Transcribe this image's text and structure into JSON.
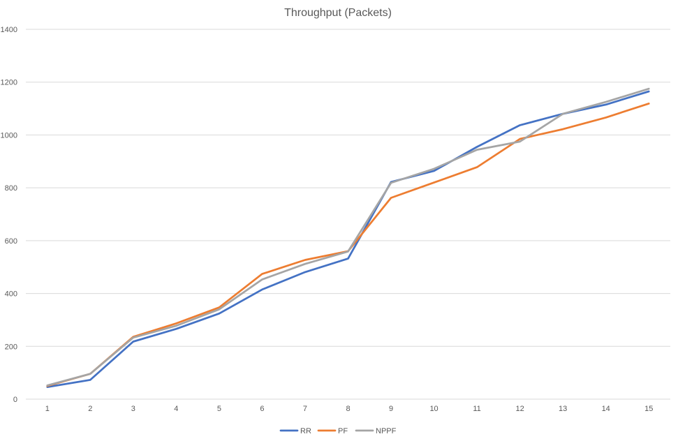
{
  "chart_data": {
    "type": "line",
    "title": "Throughput (Packets)",
    "xlabel": "",
    "ylabel": "",
    "categories": [
      "1",
      "2",
      "3",
      "4",
      "5",
      "6",
      "7",
      "8",
      "9",
      "10",
      "11",
      "12",
      "13",
      "14",
      "15"
    ],
    "ylim": [
      0,
      1400
    ],
    "yticks": [
      0,
      200,
      400,
      600,
      800,
      1000,
      1200,
      1400
    ],
    "grid": true,
    "legend": "bottom",
    "series": [
      {
        "name": "RR",
        "color": "#4472c4",
        "values": [
          46,
          73,
          218,
          266,
          324,
          415,
          481,
          532,
          822,
          864,
          955,
          1037,
          1080,
          1115,
          1165
        ]
      },
      {
        "name": "PF",
        "color": "#ed7d31",
        "values": [
          50,
          96,
          236,
          287,
          347,
          474,
          527,
          560,
          762,
          820,
          878,
          985,
          1022,
          1066,
          1119
        ]
      },
      {
        "name": "NPPF",
        "color": "#a5a5a5",
        "values": [
          52,
          96,
          233,
          278,
          340,
          453,
          512,
          559,
          819,
          872,
          944,
          975,
          1080,
          1125,
          1175
        ]
      }
    ]
  }
}
